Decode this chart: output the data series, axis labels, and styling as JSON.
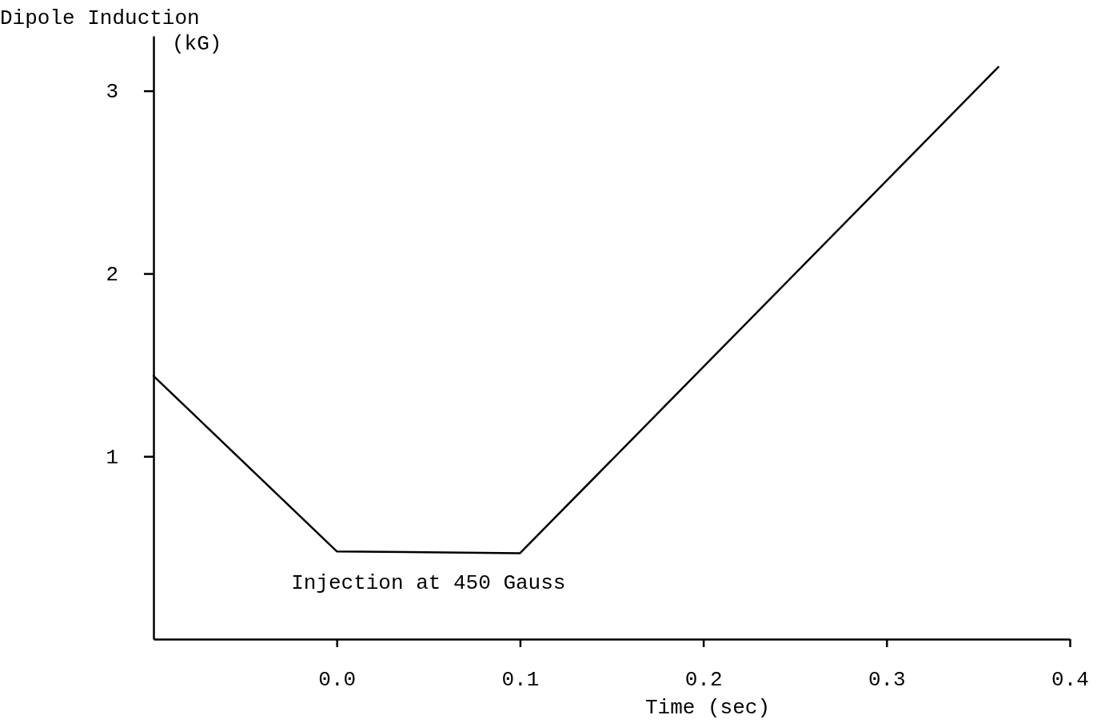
{
  "chart_data": {
    "type": "line",
    "xlabel": "Time (sec)",
    "ylabel": "Dipole Induction (kG)",
    "x": [
      -0.1,
      0.0,
      0.1,
      0.361
    ],
    "series": [
      {
        "color": "#000000",
        "values": [
          1.44,
          0.48,
          0.47,
          3.13
        ]
      }
    ],
    "xlim": [
      -0.1,
      0.4
    ],
    "ylim": [
      0,
      3.3
    ],
    "xticks": [
      {
        "value": 0,
        "label": "0.0"
      },
      {
        "value": 0.1,
        "label": "0.1"
      },
      {
        "value": 0.2,
        "label": "0.2"
      },
      {
        "value": 0.3,
        "label": "0.3"
      },
      {
        "value": 0.4,
        "label": "0.4"
      }
    ],
    "yticks": [
      1,
      2,
      3
    ],
    "annotations": [
      {
        "text": "Injection at 450 Gauss",
        "x": 0.05,
        "y": 0.47
      }
    ]
  }
}
